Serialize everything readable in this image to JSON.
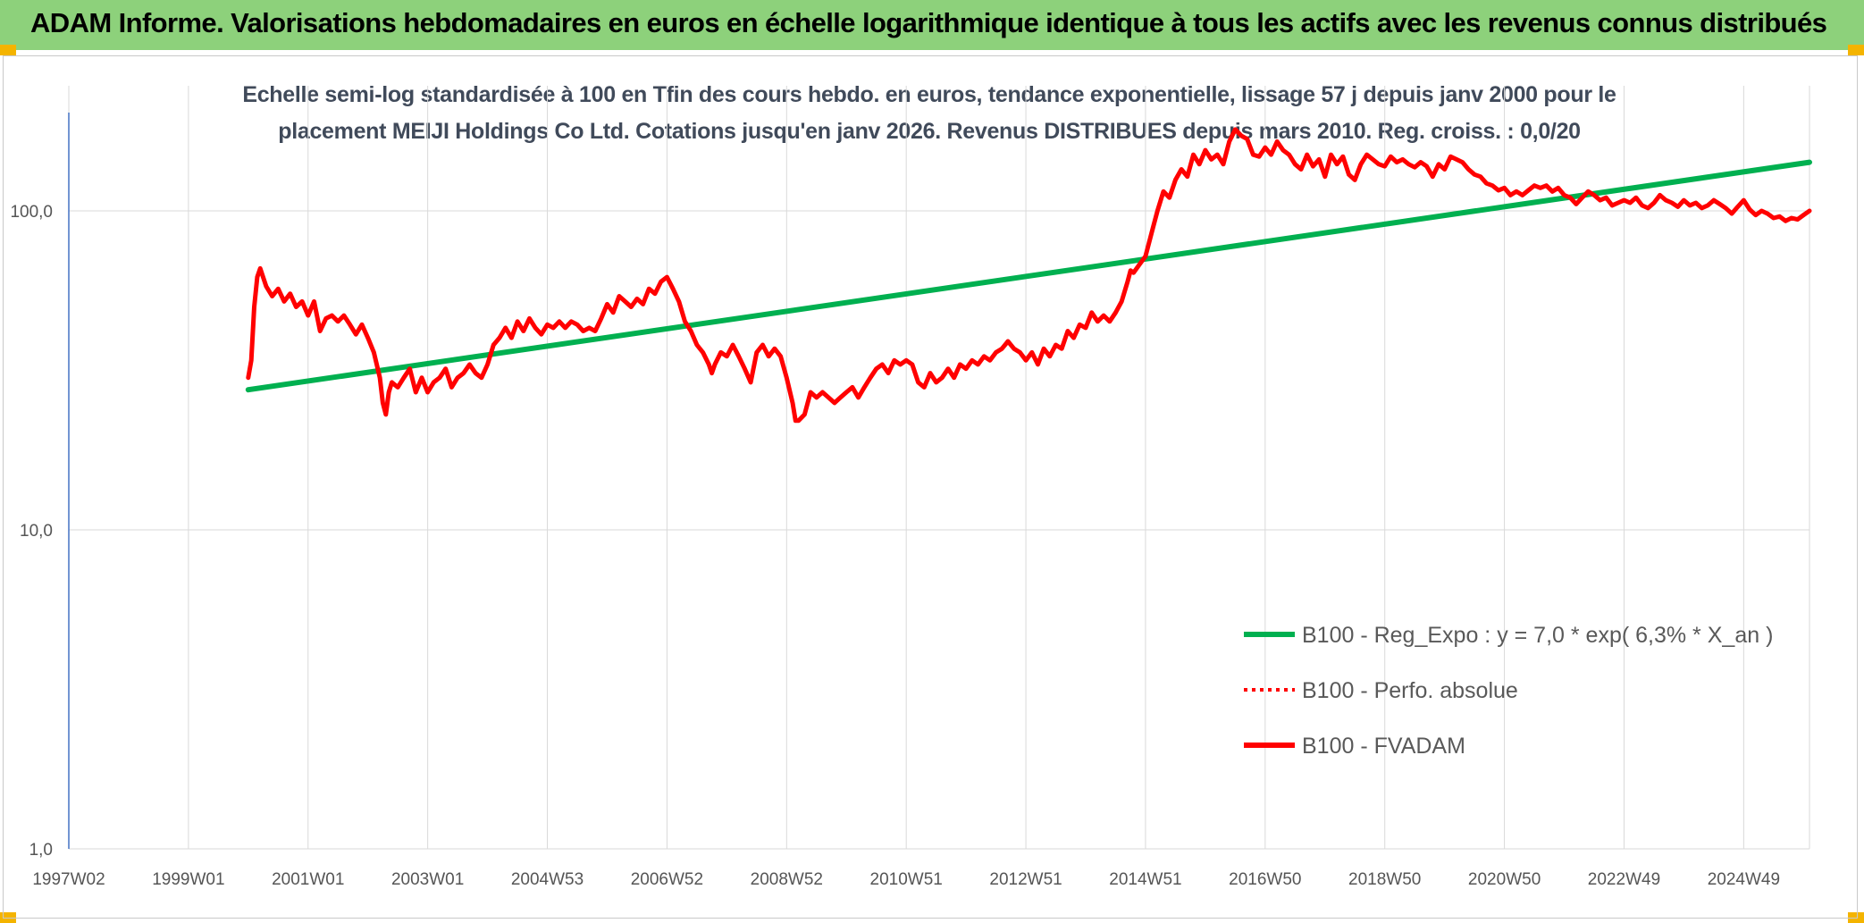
{
  "header": {
    "title": "ADAM Informe. Valorisations hebdomadaires en euros en échelle logarithmique identique à tous les actifs avec les revenus connus distribués"
  },
  "colors": {
    "banner": "#8dd17b",
    "trend": "#00b050",
    "series": "#ff0000",
    "grid": "#d9d9d9"
  },
  "chart_data": {
    "type": "line",
    "title_lines": [
      "Echelle semi-log standardisée à 100 en Tfin des cours hebdo. en euros, tendance exponentielle, lissage 57 j depuis janv 2000 pour le",
      "placement MEIJI Holdings Co Ltd. Cotations jusqu'en janv 2026. Revenus DISTRIBUES depuis mars 2010. Reg. croiss. : 0,0/20"
    ],
    "y_scale": "log",
    "ylim": [
      1,
      200
    ],
    "y_ticks": [
      {
        "value": 1,
        "label": "1,0"
      },
      {
        "value": 10,
        "label": "10,0"
      },
      {
        "value": 100,
        "label": "100,0"
      }
    ],
    "xlim": [
      1997.0,
      2026.1
    ],
    "x_ticks": [
      {
        "value": 1997.0,
        "label": "1997W02"
      },
      {
        "value": 1999.0,
        "label": "1999W01"
      },
      {
        "value": 2001.0,
        "label": "2001W01"
      },
      {
        "value": 2003.0,
        "label": "2003W01"
      },
      {
        "value": 2005.0,
        "label": "2004W53"
      },
      {
        "value": 2007.0,
        "label": "2006W52"
      },
      {
        "value": 2009.0,
        "label": "2008W52"
      },
      {
        "value": 2011.0,
        "label": "2010W51"
      },
      {
        "value": 2013.0,
        "label": "2012W51"
      },
      {
        "value": 2015.0,
        "label": "2014W51"
      },
      {
        "value": 2017.0,
        "label": "2016W50"
      },
      {
        "value": 2019.0,
        "label": "2018W50"
      },
      {
        "value": 2021.0,
        "label": "2020W50"
      },
      {
        "value": 2023.0,
        "label": "2022W49"
      },
      {
        "value": 2025.0,
        "label": "2024W49"
      }
    ],
    "legend_position": "bottom-right",
    "series": [
      {
        "name": "B100 - Reg_Expo : y = 7,0 * exp( 6,3% *  X_an )",
        "color": "#00b050",
        "style": "solid",
        "points": [
          [
            2000.0,
            27.5
          ],
          [
            2026.1,
            142
          ]
        ]
      },
      {
        "name": "B100 - Perfo. absolue",
        "color": "#ff0000",
        "style": "dotted",
        "points": []
      },
      {
        "name": "B100 - FVADAM",
        "color": "#ff0000",
        "style": "solid",
        "points": [
          [
            2000.0,
            30
          ],
          [
            2000.05,
            34
          ],
          [
            2000.1,
            50
          ],
          [
            2000.15,
            62
          ],
          [
            2000.2,
            66
          ],
          [
            2000.3,
            58
          ],
          [
            2000.4,
            54
          ],
          [
            2000.5,
            57
          ],
          [
            2000.6,
            52
          ],
          [
            2000.7,
            55
          ],
          [
            2000.8,
            50
          ],
          [
            2000.9,
            52
          ],
          [
            2001.0,
            47
          ],
          [
            2001.1,
            52
          ],
          [
            2001.2,
            42
          ],
          [
            2001.3,
            46
          ],
          [
            2001.4,
            47
          ],
          [
            2001.5,
            45
          ],
          [
            2001.6,
            47
          ],
          [
            2001.7,
            44
          ],
          [
            2001.8,
            41
          ],
          [
            2001.9,
            44
          ],
          [
            2002.0,
            40
          ],
          [
            2002.1,
            36
          ],
          [
            2002.2,
            30
          ],
          [
            2002.25,
            25
          ],
          [
            2002.3,
            23
          ],
          [
            2002.35,
            27
          ],
          [
            2002.4,
            29
          ],
          [
            2002.5,
            28
          ],
          [
            2002.6,
            30
          ],
          [
            2002.7,
            32
          ],
          [
            2002.8,
            27
          ],
          [
            2002.9,
            30
          ],
          [
            2003.0,
            27
          ],
          [
            2003.1,
            29
          ],
          [
            2003.2,
            30
          ],
          [
            2003.3,
            32
          ],
          [
            2003.4,
            28
          ],
          [
            2003.5,
            30
          ],
          [
            2003.6,
            31
          ],
          [
            2003.7,
            33
          ],
          [
            2003.8,
            31
          ],
          [
            2003.9,
            30
          ],
          [
            2004.0,
            33
          ],
          [
            2004.1,
            38
          ],
          [
            2004.2,
            40
          ],
          [
            2004.3,
            43
          ],
          [
            2004.4,
            40
          ],
          [
            2004.5,
            45
          ],
          [
            2004.6,
            42
          ],
          [
            2004.7,
            46
          ],
          [
            2004.8,
            43
          ],
          [
            2004.9,
            41
          ],
          [
            2005.0,
            44
          ],
          [
            2005.1,
            43
          ],
          [
            2005.2,
            45
          ],
          [
            2005.3,
            43
          ],
          [
            2005.4,
            45
          ],
          [
            2005.5,
            44
          ],
          [
            2005.6,
            42
          ],
          [
            2005.7,
            43
          ],
          [
            2005.8,
            42
          ],
          [
            2005.9,
            46
          ],
          [
            2006.0,
            51
          ],
          [
            2006.1,
            48
          ],
          [
            2006.2,
            54
          ],
          [
            2006.3,
            52
          ],
          [
            2006.4,
            50
          ],
          [
            2006.5,
            53
          ],
          [
            2006.6,
            51
          ],
          [
            2006.7,
            57
          ],
          [
            2006.8,
            55
          ],
          [
            2006.9,
            60
          ],
          [
            2007.0,
            62
          ],
          [
            2007.1,
            57
          ],
          [
            2007.2,
            52
          ],
          [
            2007.3,
            45
          ],
          [
            2007.4,
            42
          ],
          [
            2007.5,
            38
          ],
          [
            2007.6,
            36
          ],
          [
            2007.7,
            33
          ],
          [
            2007.75,
            31
          ],
          [
            2007.8,
            33
          ],
          [
            2007.9,
            36
          ],
          [
            2008.0,
            35
          ],
          [
            2008.1,
            38
          ],
          [
            2008.2,
            35
          ],
          [
            2008.3,
            32
          ],
          [
            2008.4,
            29
          ],
          [
            2008.5,
            36
          ],
          [
            2008.6,
            38
          ],
          [
            2008.7,
            35
          ],
          [
            2008.8,
            37
          ],
          [
            2008.9,
            35
          ],
          [
            2009.0,
            30
          ],
          [
            2009.1,
            25
          ],
          [
            2009.15,
            22
          ],
          [
            2009.2,
            22
          ],
          [
            2009.3,
            23
          ],
          [
            2009.4,
            27
          ],
          [
            2009.5,
            26
          ],
          [
            2009.6,
            27
          ],
          [
            2009.7,
            26
          ],
          [
            2009.8,
            25
          ],
          [
            2009.9,
            26
          ],
          [
            2010.0,
            27
          ],
          [
            2010.1,
            28
          ],
          [
            2010.2,
            26
          ],
          [
            2010.3,
            28
          ],
          [
            2010.4,
            30
          ],
          [
            2010.5,
            32
          ],
          [
            2010.6,
            33
          ],
          [
            2010.7,
            31
          ],
          [
            2010.8,
            34
          ],
          [
            2010.9,
            33
          ],
          [
            2011.0,
            34
          ],
          [
            2011.1,
            33
          ],
          [
            2011.2,
            29
          ],
          [
            2011.3,
            28
          ],
          [
            2011.4,
            31
          ],
          [
            2011.5,
            29
          ],
          [
            2011.6,
            30
          ],
          [
            2011.7,
            32
          ],
          [
            2011.8,
            30
          ],
          [
            2011.9,
            33
          ],
          [
            2012.0,
            32
          ],
          [
            2012.1,
            34
          ],
          [
            2012.2,
            33
          ],
          [
            2012.3,
            35
          ],
          [
            2012.4,
            34
          ],
          [
            2012.5,
            36
          ],
          [
            2012.6,
            37
          ],
          [
            2012.7,
            39
          ],
          [
            2012.8,
            37
          ],
          [
            2012.9,
            36
          ],
          [
            2013.0,
            34
          ],
          [
            2013.1,
            36
          ],
          [
            2013.2,
            33
          ],
          [
            2013.3,
            37
          ],
          [
            2013.4,
            35
          ],
          [
            2013.5,
            38
          ],
          [
            2013.6,
            37
          ],
          [
            2013.7,
            42
          ],
          [
            2013.8,
            40
          ],
          [
            2013.9,
            44
          ],
          [
            2014.0,
            43
          ],
          [
            2014.1,
            48
          ],
          [
            2014.2,
            45
          ],
          [
            2014.3,
            47
          ],
          [
            2014.4,
            45
          ],
          [
            2014.5,
            48
          ],
          [
            2014.6,
            52
          ],
          [
            2014.7,
            60
          ],
          [
            2014.75,
            65
          ],
          [
            2014.8,
            64
          ],
          [
            2014.9,
            68
          ],
          [
            2015.0,
            72
          ],
          [
            2015.1,
            85
          ],
          [
            2015.2,
            100
          ],
          [
            2015.3,
            115
          ],
          [
            2015.4,
            110
          ],
          [
            2015.5,
            125
          ],
          [
            2015.6,
            135
          ],
          [
            2015.7,
            128
          ],
          [
            2015.8,
            150
          ],
          [
            2015.9,
            140
          ],
          [
            2016.0,
            155
          ],
          [
            2016.1,
            145
          ],
          [
            2016.2,
            150
          ],
          [
            2016.3,
            140
          ],
          [
            2016.4,
            165
          ],
          [
            2016.5,
            180
          ],
          [
            2016.6,
            172
          ],
          [
            2016.7,
            168
          ],
          [
            2016.8,
            150
          ],
          [
            2016.9,
            148
          ],
          [
            2017.0,
            158
          ],
          [
            2017.1,
            150
          ],
          [
            2017.2,
            165
          ],
          [
            2017.3,
            155
          ],
          [
            2017.4,
            150
          ],
          [
            2017.5,
            140
          ],
          [
            2017.6,
            135
          ],
          [
            2017.7,
            150
          ],
          [
            2017.8,
            138
          ],
          [
            2017.9,
            145
          ],
          [
            2018.0,
            128
          ],
          [
            2018.1,
            150
          ],
          [
            2018.2,
            140
          ],
          [
            2018.3,
            148
          ],
          [
            2018.4,
            130
          ],
          [
            2018.5,
            125
          ],
          [
            2018.6,
            140
          ],
          [
            2018.7,
            150
          ],
          [
            2018.8,
            145
          ],
          [
            2018.9,
            140
          ],
          [
            2019.0,
            138
          ],
          [
            2019.1,
            148
          ],
          [
            2019.2,
            142
          ],
          [
            2019.3,
            145
          ],
          [
            2019.4,
            140
          ],
          [
            2019.5,
            137
          ],
          [
            2019.6,
            142
          ],
          [
            2019.7,
            138
          ],
          [
            2019.8,
            128
          ],
          [
            2019.9,
            140
          ],
          [
            2020.0,
            135
          ],
          [
            2020.1,
            148
          ],
          [
            2020.2,
            145
          ],
          [
            2020.3,
            142
          ],
          [
            2020.4,
            135
          ],
          [
            2020.5,
            130
          ],
          [
            2020.6,
            128
          ],
          [
            2020.7,
            122
          ],
          [
            2020.8,
            120
          ],
          [
            2020.9,
            116
          ],
          [
            2021.0,
            118
          ],
          [
            2021.1,
            112
          ],
          [
            2021.2,
            115
          ],
          [
            2021.3,
            112
          ],
          [
            2021.4,
            116
          ],
          [
            2021.5,
            120
          ],
          [
            2021.6,
            118
          ],
          [
            2021.7,
            120
          ],
          [
            2021.8,
            115
          ],
          [
            2021.9,
            118
          ],
          [
            2022.0,
            112
          ],
          [
            2022.1,
            110
          ],
          [
            2022.2,
            105
          ],
          [
            2022.3,
            110
          ],
          [
            2022.4,
            115
          ],
          [
            2022.5,
            112
          ],
          [
            2022.6,
            108
          ],
          [
            2022.7,
            110
          ],
          [
            2022.8,
            104
          ],
          [
            2022.9,
            106
          ],
          [
            2023.0,
            108
          ],
          [
            2023.1,
            106
          ],
          [
            2023.2,
            110
          ],
          [
            2023.3,
            104
          ],
          [
            2023.4,
            102
          ],
          [
            2023.5,
            106
          ],
          [
            2023.6,
            112
          ],
          [
            2023.7,
            108
          ],
          [
            2023.8,
            106
          ],
          [
            2023.9,
            103
          ],
          [
            2024.0,
            108
          ],
          [
            2024.1,
            104
          ],
          [
            2024.2,
            106
          ],
          [
            2024.3,
            102
          ],
          [
            2024.4,
            104
          ],
          [
            2024.5,
            108
          ],
          [
            2024.6,
            105
          ],
          [
            2024.7,
            102
          ],
          [
            2024.8,
            98
          ],
          [
            2024.9,
            103
          ],
          [
            2025.0,
            108
          ],
          [
            2025.1,
            101
          ],
          [
            2025.2,
            97
          ],
          [
            2025.3,
            100
          ],
          [
            2025.4,
            98
          ],
          [
            2025.5,
            95
          ],
          [
            2025.6,
            96
          ],
          [
            2025.7,
            93
          ],
          [
            2025.8,
            95
          ],
          [
            2025.9,
            94
          ],
          [
            2026.0,
            97
          ],
          [
            2026.1,
            100
          ]
        ]
      }
    ]
  }
}
